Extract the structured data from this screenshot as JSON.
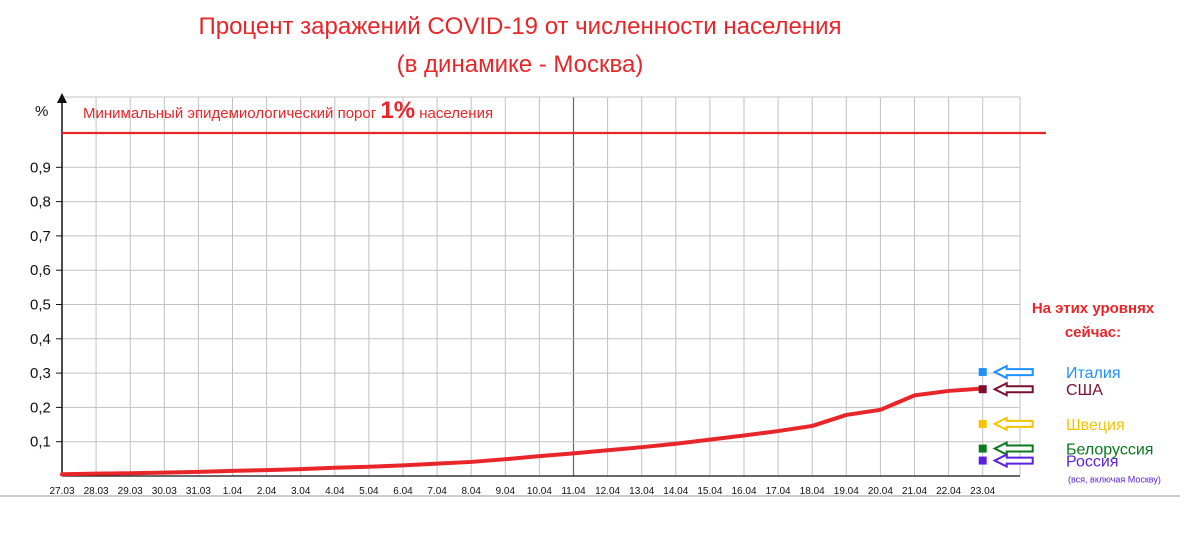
{
  "chart_data": {
    "type": "line",
    "title": "Процент заражений COVID-19 от численности населения",
    "subtitle": "(в динамике - Москва)",
    "ylabel": "%",
    "ylim": [
      0,
      1
    ],
    "grid": true,
    "yticks": [
      "0,1",
      "0,2",
      "0,3",
      "0,4",
      "0,5",
      "0,6",
      "0,7",
      "0,8",
      "0,9"
    ],
    "categories": [
      "27.03",
      "28.03",
      "29.03",
      "30.03",
      "31.03",
      "1.04",
      "2.04",
      "3.04",
      "4.04",
      "5.04",
      "6.04",
      "7.04",
      "8.04",
      "9.04",
      "10.04",
      "11.04",
      "12.04",
      "13.04",
      "14.04",
      "15.04",
      "16.04",
      "17.04",
      "18.04",
      "19.04",
      "20.04",
      "21.04",
      "22.04",
      "23.04"
    ],
    "series": [
      {
        "color": "#e8262a",
        "values": [
          0.005,
          0.007,
          0.008,
          0.01,
          0.012,
          0.015,
          0.017,
          0.02,
          0.024,
          0.027,
          0.031,
          0.036,
          0.041,
          0.049,
          0.058,
          0.066,
          0.075,
          0.084,
          0.094,
          0.106,
          0.118,
          0.131,
          0.146,
          0.178,
          0.193,
          0.235,
          0.248,
          0.255
        ]
      }
    ],
    "threshold": {
      "value": 1,
      "label_before": "Минимальный эпидемиологический порог",
      "label_big": "1%",
      "label_after": "населения",
      "color": "#e8262a"
    },
    "levels": {
      "heading_line1": "На этих уровнях",
      "heading_line2": "сейчас:",
      "items": [
        {
          "name": "Италия",
          "value": 0.303,
          "color": "#1e90ff"
        },
        {
          "name": "США",
          "value": 0.253,
          "color": "#7a1030"
        },
        {
          "name": "Швеция",
          "value": 0.152,
          "color": "#f5c400"
        },
        {
          "name": "Белоруссия",
          "value": 0.08,
          "color": "#0a7a1e"
        },
        {
          "name": "Россия",
          "value": 0.045,
          "color": "#5a22e0",
          "note": "(вся, включая Москву)"
        }
      ]
    }
  }
}
